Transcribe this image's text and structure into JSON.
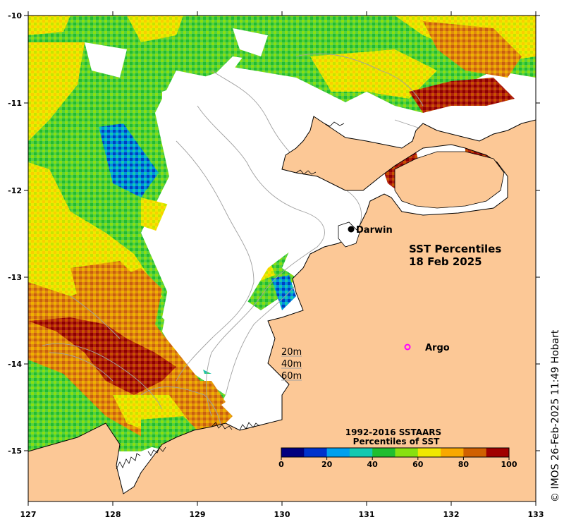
{
  "map": {
    "title_line1": "SST Percentiles",
    "title_line2": "18 Feb 2025",
    "land_color": "#fcc896",
    "x_ticks": [
      "127",
      "128",
      "129",
      "130",
      "131",
      "132",
      "133"
    ],
    "y_ticks": [
      "-10",
      "-11",
      "-12",
      "-13",
      "-14",
      "-15"
    ],
    "places": {
      "darwin": "Darwin",
      "argo": "Argo"
    },
    "depth_legend": [
      "20m",
      "40m",
      "60m"
    ],
    "colorbar": {
      "title_line1": "1992-2016 SSTAARS",
      "title_line2": "Percentiles of SST",
      "ticks": [
        "0",
        "20",
        "40",
        "60",
        "80",
        "100"
      ],
      "colors": [
        "#00007f",
        "#0033cc",
        "#00a0ee",
        "#14c9b0",
        "#20be30",
        "#88e010",
        "#f0e800",
        "#f8a800",
        "#d06000",
        "#a00000"
      ]
    },
    "credit": "© IMOS 26-Feb-2025 11:49 Hobart"
  }
}
